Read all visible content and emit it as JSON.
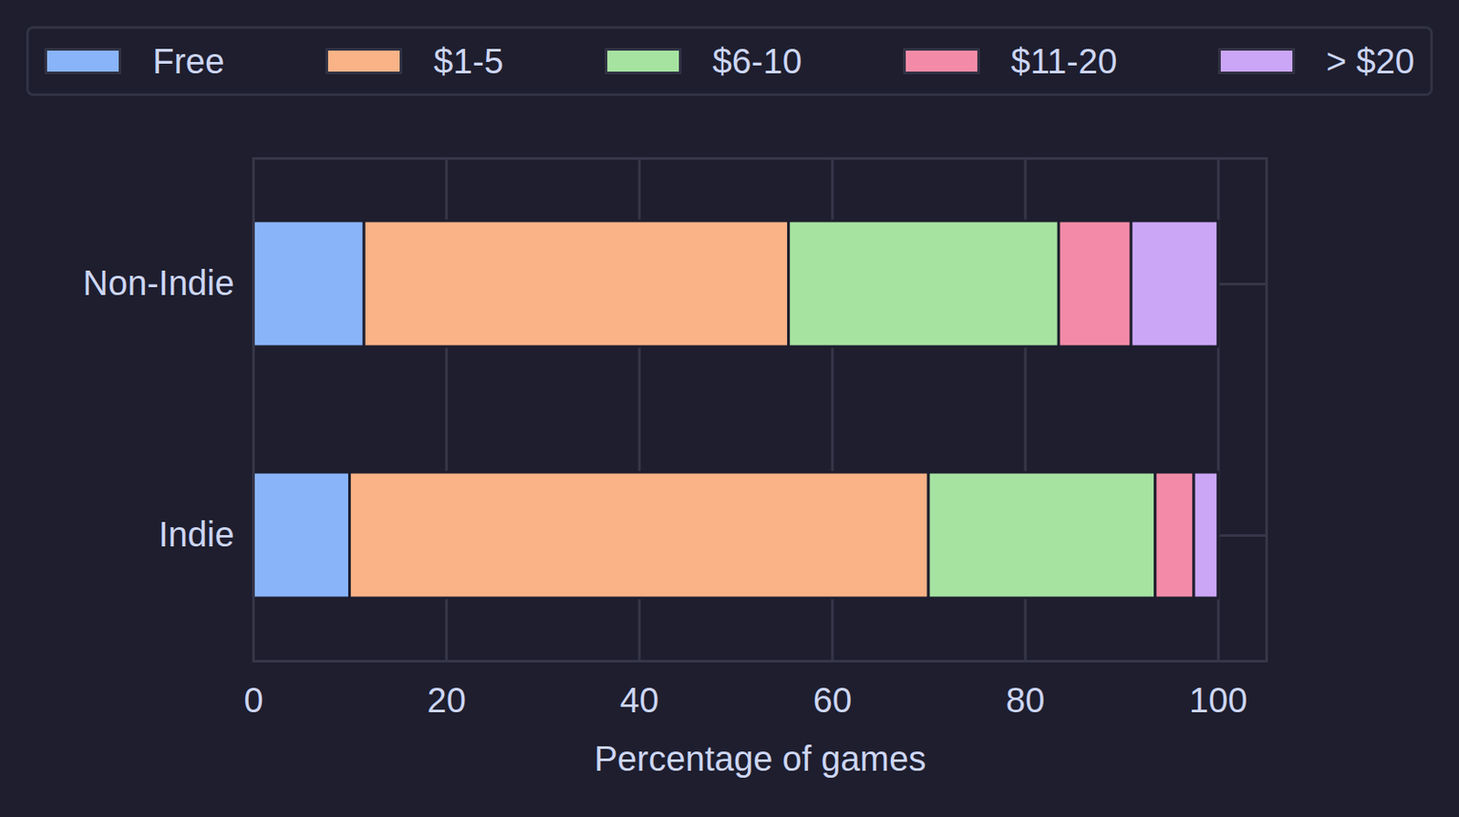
{
  "chart_data": {
    "type": "bar",
    "orientation": "horizontal",
    "stacked": true,
    "categories": [
      "Non-Indie",
      "Indie"
    ],
    "series": [
      {
        "name": "Free",
        "color": "#89b4fa",
        "values": [
          11.5,
          10
        ]
      },
      {
        "name": "$1-5",
        "color": "#fab387",
        "values": [
          44,
          60
        ]
      },
      {
        "name": "$6-10",
        "color": "#a6e3a1",
        "values": [
          28,
          23.5
        ]
      },
      {
        "name": "$11-20",
        "color": "#f38ba8",
        "values": [
          7.5,
          4
        ]
      },
      {
        "name": "> $20",
        "color": "#cba6f7",
        "values": [
          9,
          2.5
        ]
      }
    ],
    "xlabel": "Percentage of games",
    "xlim": [
      0,
      105
    ],
    "xticks": [
      0,
      20,
      40,
      60,
      80,
      100
    ],
    "grid": true,
    "legend": "top"
  }
}
